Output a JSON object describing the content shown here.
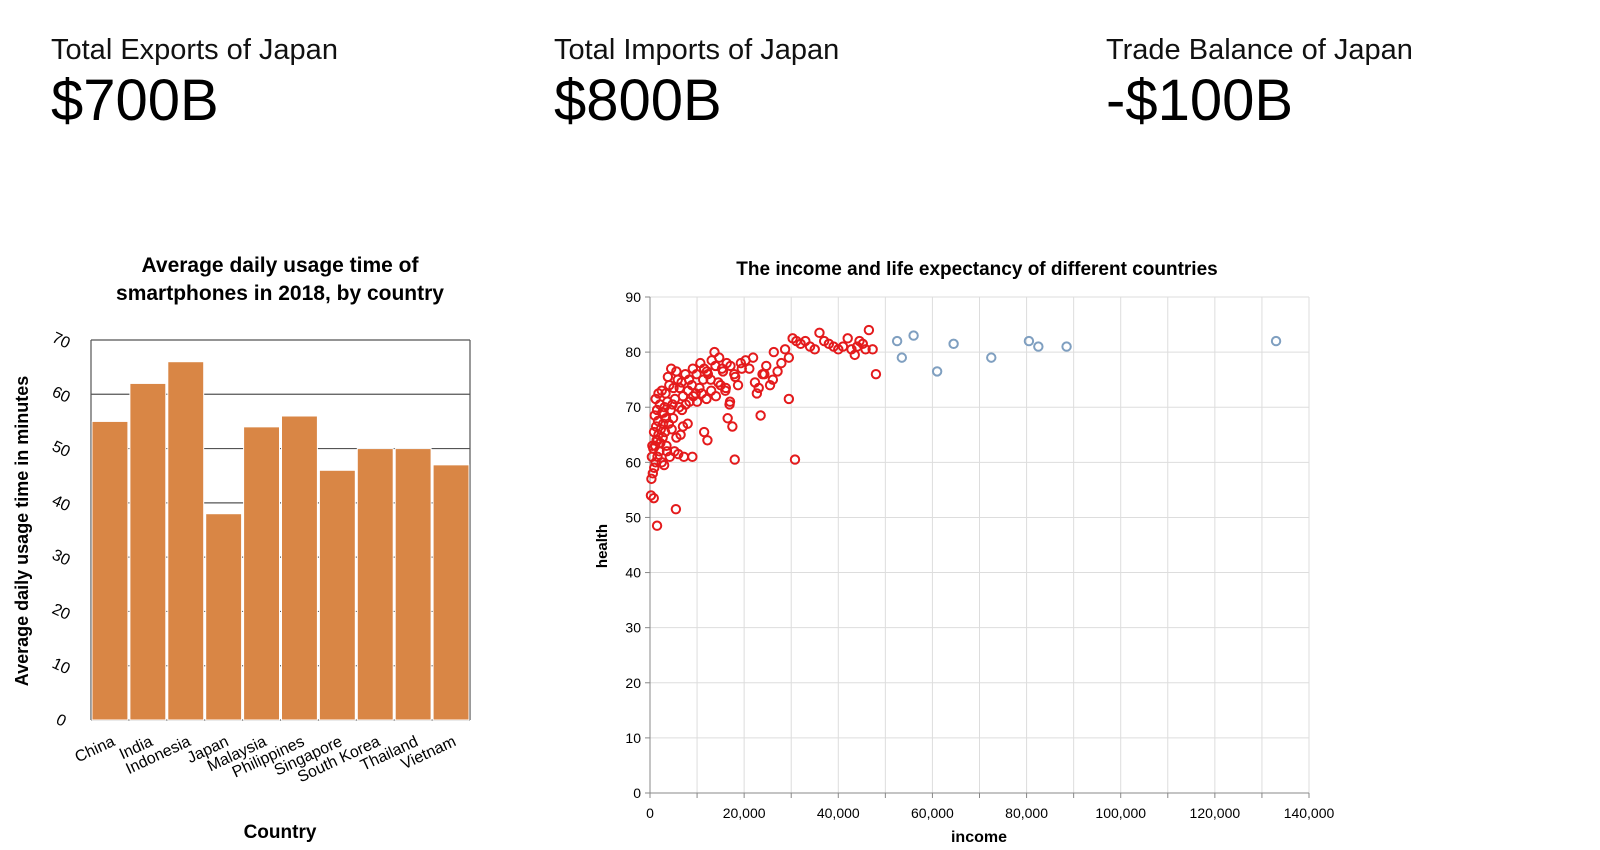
{
  "kpis": {
    "exports": {
      "label": "Total Exports of Japan",
      "value": "$700B"
    },
    "imports": {
      "label": "Total Imports of Japan",
      "value": "$800B"
    },
    "balance": {
      "label": "Trade Balance of Japan",
      "value": "-$100B"
    }
  },
  "colors": {
    "bar": "#d98645",
    "bar_stroke": "#ffffff",
    "grid_bar": "#555555",
    "grid_scatter": "#dddddd",
    "point_low": "#e41a1c",
    "point_high": "#7f9fc0",
    "axis": "#888888"
  },
  "chart_data": [
    {
      "type": "bar",
      "title_lines": [
        "Average daily usage time of",
        "smartphones in 2018, by country"
      ],
      "xlabel": "Country",
      "ylabel": "Average daily usage time in minutes",
      "categories": [
        "China",
        "India",
        "Indonesia",
        "Japan",
        "Malaysia",
        "Philippines",
        "Singapore",
        "South Korea",
        "Thailand",
        "Vietnam"
      ],
      "values": [
        55,
        62,
        66,
        38,
        54,
        56,
        46,
        50,
        50,
        47
      ],
      "ylim": [
        0,
        70
      ],
      "yticks": [
        0,
        10,
        20,
        30,
        40,
        50,
        60,
        70
      ],
      "grid": true
    },
    {
      "type": "scatter",
      "title": "The income and life expectancy of different countries",
      "xlabel": "income",
      "ylabel": "health",
      "xlim": [
        0,
        140000
      ],
      "ylim": [
        0,
        90
      ],
      "xticks": [
        0,
        20000,
        40000,
        60000,
        80000,
        100000,
        120000,
        140000
      ],
      "xtick_labels": [
        "0",
        "20,000",
        "40,000",
        "60,000",
        "80,000",
        "100,000",
        "120,000",
        "140,000"
      ],
      "yticks": [
        0,
        10,
        20,
        30,
        40,
        50,
        60,
        70,
        80,
        90
      ],
      "grid": true,
      "series": [
        {
          "color_key": "point_low",
          "points": [
            [
              200,
              54
            ],
            [
              800,
              53.5
            ],
            [
              1500,
              48.5
            ],
            [
              5500,
              51.5
            ],
            [
              18000,
              60.5
            ],
            [
              30800,
              60.5
            ],
            [
              300,
              57
            ],
            [
              600,
              58
            ],
            [
              900,
              59
            ],
            [
              1200,
              60
            ],
            [
              1600,
              61
            ],
            [
              2000,
              62
            ],
            [
              2500,
              60
            ],
            [
              3000,
              59.5
            ],
            [
              400,
              61
            ],
            [
              700,
              62.5
            ],
            [
              1100,
              63
            ],
            [
              1400,
              64
            ],
            [
              1800,
              65
            ],
            [
              2200,
              63.5
            ],
            [
              2700,
              64.5
            ],
            [
              3200,
              65.5
            ],
            [
              3600,
              62
            ],
            [
              4200,
              61
            ],
            [
              5200,
              62
            ],
            [
              6000,
              61.5
            ],
            [
              7200,
              61
            ],
            [
              9000,
              61
            ],
            [
              500,
              63
            ],
            [
              850,
              65.5
            ],
            [
              1300,
              66.5
            ],
            [
              1700,
              67.5
            ],
            [
              2300,
              66
            ],
            [
              2800,
              67
            ],
            [
              3400,
              68
            ],
            [
              4000,
              67
            ],
            [
              4600,
              66
            ],
            [
              5600,
              64.5
            ],
            [
              7000,
              66.5
            ],
            [
              11500,
              65.5
            ],
            [
              12200,
              64
            ],
            [
              1000,
              68.5
            ],
            [
              1500,
              69.5
            ],
            [
              2100,
              70.5
            ],
            [
              2600,
              69
            ],
            [
              3100,
              70
            ],
            [
              3700,
              71
            ],
            [
              4400,
              69.5
            ],
            [
              4800,
              70.5
            ],
            [
              5300,
              71.5
            ],
            [
              6200,
              70
            ],
            [
              6800,
              69.5
            ],
            [
              7600,
              70.5
            ],
            [
              8400,
              71
            ],
            [
              9200,
              72
            ],
            [
              10000,
              71
            ],
            [
              11000,
              72.5
            ],
            [
              12000,
              71.5
            ],
            [
              13000,
              73
            ],
            [
              14000,
              72
            ],
            [
              15000,
              74
            ],
            [
              16000,
              73
            ],
            [
              17000,
              71
            ],
            [
              16500,
              68
            ],
            [
              17500,
              66.5
            ],
            [
              23500,
              68.5
            ],
            [
              29500,
              71.5
            ],
            [
              1200,
              71.5
            ],
            [
              1800,
              72.5
            ],
            [
              2500,
              73
            ],
            [
              3300,
              72.5
            ],
            [
              4100,
              74
            ],
            [
              5000,
              73.5
            ],
            [
              5900,
              75
            ],
            [
              6700,
              74.5
            ],
            [
              7500,
              76
            ],
            [
              8300,
              75
            ],
            [
              9100,
              77
            ],
            [
              9900,
              76
            ],
            [
              10700,
              78
            ],
            [
              11500,
              77
            ],
            [
              12300,
              76
            ],
            [
              13100,
              78.5
            ],
            [
              13900,
              77.5
            ],
            [
              14700,
              79
            ],
            [
              15500,
              76.5
            ],
            [
              16300,
              78
            ],
            [
              17100,
              77.5
            ],
            [
              17900,
              76
            ],
            [
              18700,
              74
            ],
            [
              19500,
              77
            ],
            [
              20300,
              78.5
            ],
            [
              21100,
              77
            ],
            [
              21900,
              79
            ],
            [
              22700,
              72.5
            ],
            [
              23100,
              73.5
            ],
            [
              23900,
              76
            ],
            [
              24700,
              77.5
            ],
            [
              25500,
              74
            ],
            [
              26300,
              80
            ],
            [
              27100,
              76.5
            ],
            [
              27900,
              78
            ],
            [
              28700,
              80.5
            ],
            [
              29500,
              79
            ],
            [
              30300,
              82.5
            ],
            [
              31100,
              82
            ],
            [
              32000,
              81.5
            ],
            [
              33000,
              82
            ],
            [
              34000,
              81
            ],
            [
              35000,
              80.5
            ],
            [
              36000,
              83.5
            ],
            [
              37000,
              82
            ],
            [
              38000,
              81.5
            ],
            [
              39000,
              81
            ],
            [
              40000,
              80.5
            ],
            [
              41000,
              81
            ],
            [
              42000,
              82.5
            ],
            [
              42800,
              80.5
            ],
            [
              43500,
              79.5
            ],
            [
              44000,
              81
            ],
            [
              44500,
              82
            ],
            [
              45200,
              81.5
            ],
            [
              45800,
              80.5
            ],
            [
              46500,
              84
            ],
            [
              47300,
              80.5
            ],
            [
              48000,
              76
            ],
            [
              3800,
              75.5
            ],
            [
              4500,
              77
            ],
            [
              5600,
              76.5
            ],
            [
              6300,
              73.5
            ],
            [
              7000,
              72
            ],
            [
              8100,
              73
            ],
            [
              8900,
              74
            ],
            [
              9700,
              72.5
            ],
            [
              10500,
              73.5
            ],
            [
              11300,
              75
            ],
            [
              12100,
              76.5
            ],
            [
              12900,
              75
            ],
            [
              13700,
              80
            ],
            [
              14500,
              74.5
            ],
            [
              15300,
              77
            ],
            [
              16100,
              73.5
            ],
            [
              16900,
              70.5
            ],
            [
              18100,
              75.5
            ],
            [
              19300,
              78
            ],
            [
              22300,
              74.5
            ],
            [
              24300,
              76
            ],
            [
              26100,
              75
            ],
            [
              1600,
              64
            ],
            [
              2900,
              69
            ],
            [
              3500,
              63
            ],
            [
              4900,
              68
            ],
            [
              6500,
              65
            ],
            [
              8000,
              67
            ]
          ]
        },
        {
          "color_key": "point_high",
          "points": [
            [
              52500,
              82
            ],
            [
              53500,
              79
            ],
            [
              56000,
              83
            ],
            [
              61000,
              76.5
            ],
            [
              64500,
              81.5
            ],
            [
              72500,
              79
            ],
            [
              80500,
              82
            ],
            [
              82500,
              81
            ],
            [
              88500,
              81
            ],
            [
              133000,
              82
            ]
          ]
        }
      ]
    }
  ]
}
